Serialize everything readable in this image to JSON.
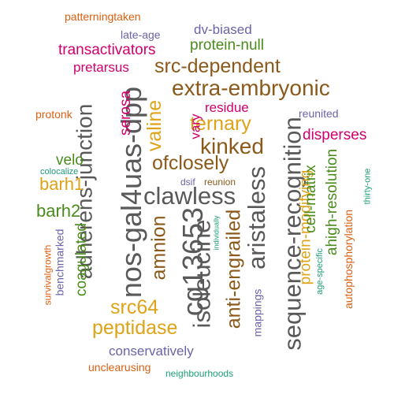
{
  "colors": {
    "gray": "#595959",
    "brown": "#8b5a1a",
    "green": "#4a8c1c",
    "magenta": "#d1006c",
    "purple": "#6b63a8",
    "orange": "#dc5f12",
    "gold": "#dea317",
    "teal": "#1b9e77"
  },
  "words": [
    {
      "text": "clawless",
      "color": "gray"
    },
    {
      "text": "cg13653",
      "color": "gray"
    },
    {
      "text": "nos-gal4uas-dpp",
      "color": "gray"
    },
    {
      "text": "sequence-recognition",
      "color": "gray"
    },
    {
      "text": "aristaless",
      "color": "gray"
    },
    {
      "text": "isoleucine",
      "color": "gray"
    },
    {
      "text": "adherens-junction",
      "color": "gray"
    },
    {
      "text": "extra-embryonic",
      "color": "brown"
    },
    {
      "text": "src-dependent",
      "color": "brown"
    },
    {
      "text": "kinked",
      "color": "brown"
    },
    {
      "text": "ofclosely",
      "color": "brown"
    },
    {
      "text": "anti-engrailed",
      "color": "brown"
    },
    {
      "text": "amnion",
      "color": "brown"
    },
    {
      "text": "ternary",
      "color": "gold"
    },
    {
      "text": "valine",
      "color": "gold"
    },
    {
      "text": "peptidase",
      "color": "gold"
    },
    {
      "text": "src64",
      "color": "gold"
    },
    {
      "text": "barh1",
      "color": "gold"
    },
    {
      "text": "protein-modifying",
      "color": "gold"
    },
    {
      "text": "transactivators",
      "color": "magenta"
    },
    {
      "text": "pretarsus",
      "color": "magenta"
    },
    {
      "text": "residue",
      "color": "magenta"
    },
    {
      "text": "disperses",
      "color": "magenta"
    },
    {
      "text": "serosa",
      "color": "magenta"
    },
    {
      "text": "vary",
      "color": "magenta"
    },
    {
      "text": "protein-null",
      "color": "green"
    },
    {
      "text": "velo",
      "color": "green"
    },
    {
      "text": "barh2",
      "color": "green"
    },
    {
      "text": "coagulated",
      "color": "green"
    },
    {
      "text": "ahigh-resolution",
      "color": "green"
    },
    {
      "text": "cell-matrix",
      "color": "green"
    },
    {
      "text": "dv-biased",
      "color": "purple"
    },
    {
      "text": "late-age",
      "color": "purple"
    },
    {
      "text": "reunited",
      "color": "purple"
    },
    {
      "text": "conservatively",
      "color": "purple"
    },
    {
      "text": "benchmarked",
      "color": "purple"
    },
    {
      "text": "mappings",
      "color": "purple"
    },
    {
      "text": "dsif",
      "color": "purple"
    },
    {
      "text": "patterningtaken",
      "color": "orange"
    },
    {
      "text": "protonk",
      "color": "orange"
    },
    {
      "text": "unclearusing",
      "color": "orange"
    },
    {
      "text": "survivalgrowth",
      "color": "orange"
    },
    {
      "text": "autophosphorylation",
      "color": "orange"
    },
    {
      "text": "reunion",
      "color": "brown"
    },
    {
      "text": "colocalize",
      "color": "teal"
    },
    {
      "text": "age-specific",
      "color": "teal"
    },
    {
      "text": "thirty-one",
      "color": "teal"
    },
    {
      "text": "neighbourhoods",
      "color": "teal"
    },
    {
      "text": "individually",
      "color": "teal"
    }
  ]
}
